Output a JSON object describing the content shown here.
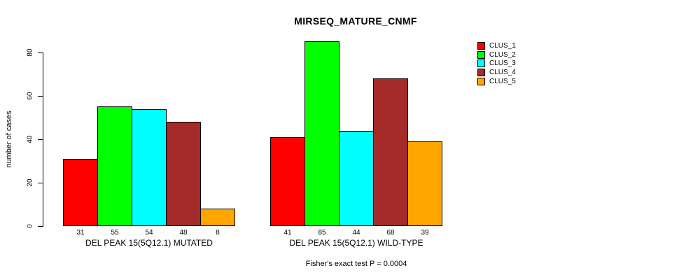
{
  "chart_data": {
    "type": "bar",
    "title": "MIRSEQ_MATURE_CNMF",
    "ylabel": "number of cases",
    "xlabel": "",
    "ylim": [
      0,
      80
    ],
    "yticks": [
      0,
      20,
      40,
      60,
      80
    ],
    "grid": false,
    "legend_position": "right",
    "bar_border_color": "#000000",
    "categories": [
      "DEL PEAK 15(5Q12.1) MUTATED",
      "DEL PEAK 15(5Q12.1) WILD-TYPE"
    ],
    "series": [
      {
        "name": "CLUS_1",
        "color": "#ff0000",
        "values": [
          31,
          41
        ]
      },
      {
        "name": "CLUS_2",
        "color": "#00ff00",
        "values": [
          55,
          85
        ]
      },
      {
        "name": "CLUS_3",
        "color": "#00ffff",
        "values": [
          54,
          44
        ]
      },
      {
        "name": "CLUS_4",
        "color": "#a52a2a",
        "values": [
          48,
          68
        ]
      },
      {
        "name": "CLUS_5",
        "color": "#ffa500",
        "values": [
          8,
          39
        ]
      }
    ],
    "bar_value_labels_shown": true,
    "footnote": "Fisher's exact test P = 0.0004"
  }
}
